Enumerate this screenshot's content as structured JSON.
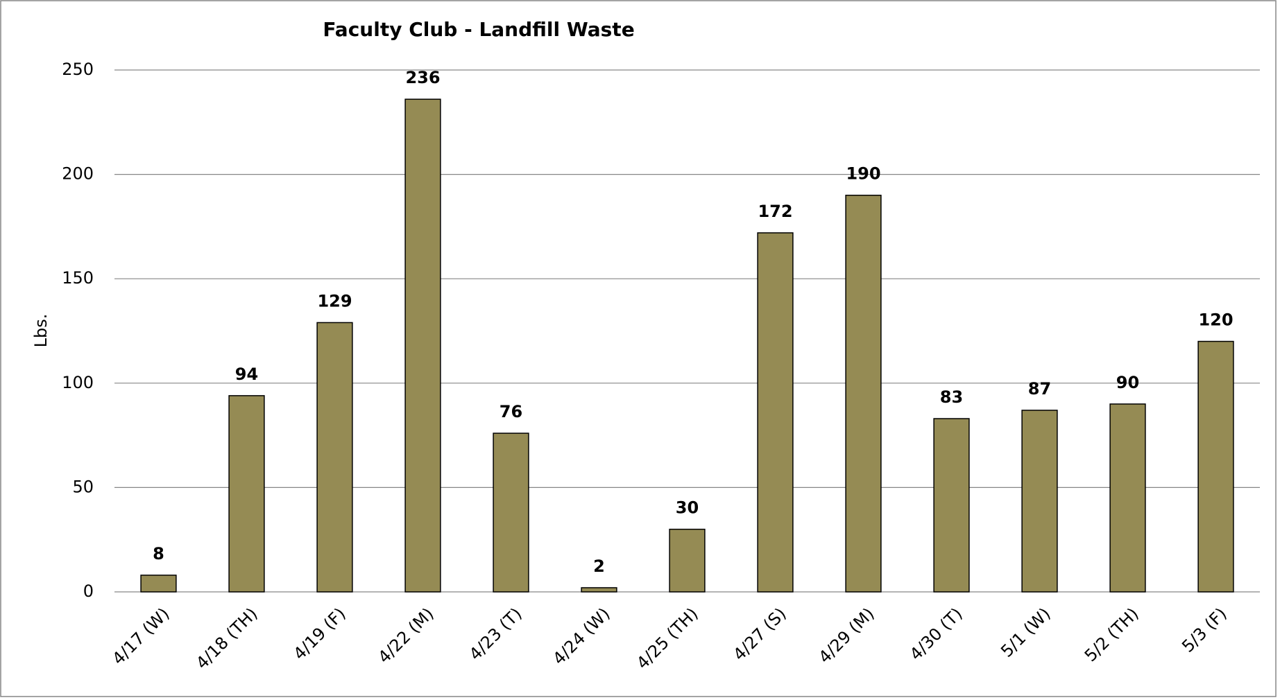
{
  "chart_data": {
    "type": "bar",
    "title": "Faculty Club - Landfill Waste",
    "y_label": "Lbs.",
    "categories": [
      "4/17 (W)",
      "4/18 (TH)",
      "4/19 (F)",
      "4/22 (M)",
      "4/23 (T)",
      "4/24 (W)",
      "4/25 (TH)",
      "4/27 (S)",
      "4/29 (M)",
      "4/30 (T)",
      "5/1 (W)",
      "5/2 (TH)",
      "5/3 (F)"
    ],
    "values": [
      8,
      94,
      129,
      236,
      76,
      2,
      30,
      172,
      190,
      83,
      87,
      90,
      120
    ],
    "color": "#958b54",
    "ylim": [
      0,
      250
    ],
    "yticks": [
      0,
      50,
      100,
      150,
      200,
      250
    ],
    "grid": true
  }
}
